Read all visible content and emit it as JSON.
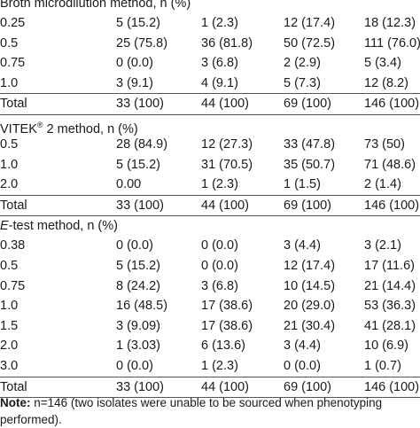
{
  "sections": [
    {
      "title": "Broth microdilution method, n (%)",
      "rows": [
        [
          "0.25",
          "5 (15.2)",
          "1 (2.3)",
          "12 (17.4)",
          "18 (12.3)"
        ],
        [
          "0.5",
          "25 (75.8)",
          "36 (81.8)",
          "50 (72.5)",
          "111 (76.0)"
        ],
        [
          "0.75",
          "0 (0.0)",
          "3 (6.8)",
          "2 (2.9)",
          "5 (3.4)"
        ],
        [
          "1.0",
          "3 (9.1)",
          "4 (9.1)",
          "5 (7.3)",
          "12 (8.2)"
        ]
      ],
      "total": [
        "Total",
        "33 (100)",
        "44 (100)",
        "69 (100)",
        "146 (100)"
      ]
    },
    {
      "title_prefix": "VITEK",
      "title_sup": "®",
      "title_suffix": " 2 method, n (%)",
      "rows": [
        [
          "0.5",
          "28 (84.9)",
          "12 (27.3)",
          "33 (47.8)",
          "73 (50)"
        ],
        [
          "1.0",
          "5 (15.2)",
          "31 (70.5)",
          "35 (50.7)",
          "71 (48.6)"
        ],
        [
          "2.0",
          "0.00",
          "1 (2.3)",
          "1 (1.5)",
          "2 (1.4)"
        ]
      ],
      "total": [
        "Total",
        "33 (100)",
        "44 (100)",
        "69 (100)",
        "146 (100)"
      ]
    },
    {
      "title_italic": "E",
      "title_suffix": "-test method, n (%)",
      "rows": [
        [
          "0.38",
          "0 (0.0)",
          "0 (0.0)",
          "3 (4.4)",
          "3 (2.1)"
        ],
        [
          "0.5",
          "5 (15.2)",
          "0 (0.0)",
          "12 (17.4)",
          "17 (11.6)"
        ],
        [
          "0.75",
          "8 (24.2)",
          "3 (6.8)",
          "10 (14.5)",
          "21 (14.4)"
        ],
        [
          "1.0",
          "16 (48.5)",
          "17 (38.6)",
          "20 (29.0)",
          "53 (36.3)"
        ],
        [
          "1.5",
          "3 (9.09)",
          "17 (38.6)",
          "21 (30.4)",
          "41 (28.1)"
        ],
        [
          "2.0",
          "1 (3.03)",
          "6 (13.6)",
          "3 (4.4)",
          "10 (6.9)"
        ],
        [
          "3.0",
          "0 (0.0)",
          "1 (2.3)",
          "0 (0.0)",
          "1 (0.7)"
        ]
      ],
      "total": [
        "Total",
        "33 (100)",
        "44 (100)",
        "69 (100)",
        "146 (100)"
      ]
    }
  ],
  "note": {
    "label": "Note:",
    "text": " n=146 (two isolates were unable to be sourced when phenotyping performed)."
  }
}
